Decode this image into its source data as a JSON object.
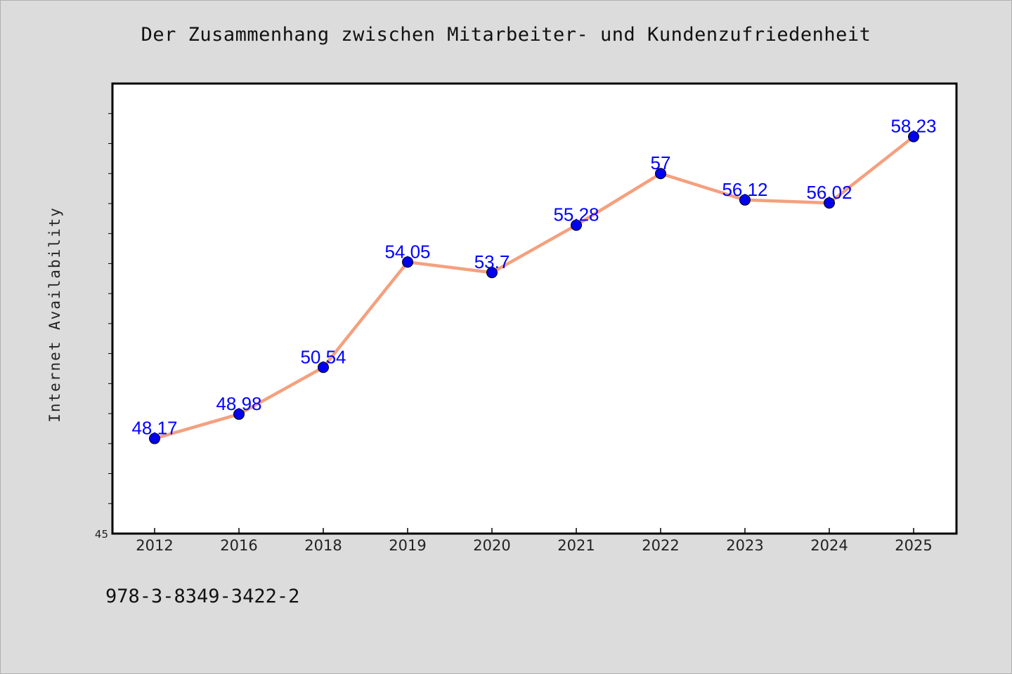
{
  "colors": {
    "line": "#f4a07f",
    "marker": "#0000ee",
    "data_label": "#0000ff",
    "background": "#dcdcdc",
    "plot_background": "#ffffff"
  },
  "footer_text": "978-3-8349-3422-2",
  "chart_data": {
    "type": "line",
    "title": "Der Zusammenhang zwischen Mitarbeiter- und Kundenzufriedenheit",
    "xlabel": "",
    "ylabel": "Internet Availability",
    "categories": [
      "2012",
      "2016",
      "2018",
      "2019",
      "2020",
      "2021",
      "2022",
      "2023",
      "2024",
      "2025"
    ],
    "series": [
      {
        "values": [
          48.17,
          48.98,
          50.54,
          54.05,
          53.7,
          55.28,
          57,
          56.12,
          56.02,
          58.23
        ],
        "data_labels": [
          "48.17",
          "48.98",
          "50.54",
          "54.05",
          "53.7",
          "55.28",
          "57",
          "56.12",
          "56.02",
          "58.23"
        ]
      }
    ],
    "ylim": [
      45,
      60
    ],
    "y_tick_labels": [
      "45"
    ],
    "y_minor_step": 1,
    "grid": false,
    "legend": "none"
  }
}
